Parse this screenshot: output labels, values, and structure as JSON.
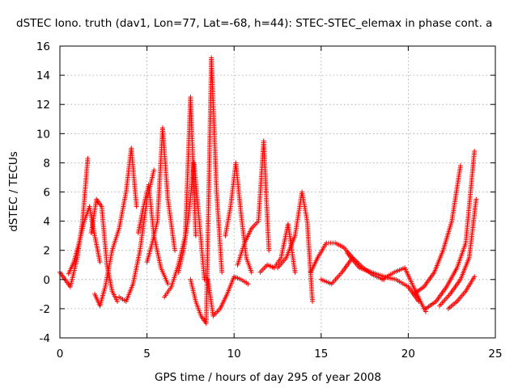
{
  "chart_data": {
    "type": "scatter",
    "title": "dSTEC Iono. truth (dav1, Lon=77, Lat=-68, h=44): STEC-STEC_elemax in phase cont. a",
    "xlabel": "GPS time / hours of day 295 of year 2008",
    "ylabel": "dSTEC  / TECUs",
    "xlim": [
      0,
      25
    ],
    "ylim": [
      -4,
      16
    ],
    "x_ticks": [
      0,
      5,
      10,
      15,
      20,
      25
    ],
    "y_ticks": [
      -4,
      -2,
      0,
      2,
      4,
      6,
      8,
      10,
      12,
      14,
      16
    ],
    "grid": true,
    "marker": "+",
    "color": "#ff0000",
    "series": [
      {
        "x": [
          0.0,
          0.3,
          0.6,
          1.0,
          1.3,
          1.6
        ],
        "y": [
          0.5,
          0.0,
          -0.5,
          1.5,
          4.0,
          8.3
        ]
      },
      {
        "x": [
          0.5,
          0.8,
          1.1,
          1.4,
          1.7,
          2.0,
          2.3
        ],
        "y": [
          0.4,
          1.2,
          2.5,
          4.0,
          5.0,
          3.0,
          1.2
        ]
      },
      {
        "x": [
          1.8,
          2.1,
          2.4,
          2.7,
          3.0,
          3.3
        ],
        "y": [
          3.2,
          5.5,
          5.0,
          1.0,
          -0.8,
          -1.5
        ]
      },
      {
        "x": [
          2.0,
          2.3,
          2.6,
          3.0,
          3.4,
          3.8,
          4.1,
          4.4
        ],
        "y": [
          -1.0,
          -1.8,
          -0.5,
          2.0,
          3.5,
          6.0,
          9.0,
          5.0
        ]
      },
      {
        "x": [
          3.4,
          3.8,
          4.2,
          4.6,
          5.0,
          5.4
        ],
        "y": [
          -1.2,
          -1.5,
          -0.3,
          2.0,
          5.5,
          7.5
        ]
      },
      {
        "x": [
          4.5,
          4.8,
          5.1,
          5.4,
          5.8,
          6.2
        ],
        "y": [
          3.2,
          5.0,
          6.5,
          3.0,
          0.8,
          -0.3
        ]
      },
      {
        "x": [
          5.0,
          5.3,
          5.6,
          5.9,
          6.2,
          6.6
        ],
        "y": [
          1.2,
          2.5,
          4.0,
          10.4,
          5.5,
          2.0
        ]
      },
      {
        "x": [
          6.0,
          6.4,
          6.8,
          7.2,
          7.5,
          7.8
        ],
        "y": [
          -1.2,
          -0.5,
          1.0,
          3.0,
          12.5,
          3.0
        ]
      },
      {
        "x": [
          6.8,
          7.1,
          7.4,
          7.7,
          8.0,
          8.3
        ],
        "y": [
          0.5,
          2.0,
          4.5,
          8.0,
          4.0,
          0.0
        ]
      },
      {
        "x": [
          7.5,
          7.8,
          8.1,
          8.4,
          8.7,
          9.0,
          9.3
        ],
        "y": [
          0.0,
          -1.5,
          -2.5,
          -3.0,
          15.2,
          6.0,
          0.5
        ]
      },
      {
        "x": [
          8.5,
          8.8,
          9.2,
          9.6,
          10.0,
          10.4,
          10.8
        ],
        "y": [
          0.0,
          -2.5,
          -2.0,
          -1.0,
          0.2,
          0.0,
          -0.3
        ]
      },
      {
        "x": [
          9.5,
          9.8,
          10.1,
          10.4,
          10.7,
          11.0
        ],
        "y": [
          3.0,
          5.0,
          8.0,
          4.5,
          1.5,
          0.5
        ]
      },
      {
        "x": [
          10.2,
          10.6,
          11.0,
          11.4,
          11.7,
          12.0
        ],
        "y": [
          1.0,
          2.5,
          3.5,
          4.0,
          9.5,
          2.0
        ]
      },
      {
        "x": [
          11.5,
          11.9,
          12.3,
          12.7,
          13.1,
          13.5
        ],
        "y": [
          0.5,
          1.0,
          0.8,
          1.5,
          3.8,
          0.5
        ]
      },
      {
        "x": [
          12.5,
          13.0,
          13.5,
          13.9,
          14.2,
          14.5
        ],
        "y": [
          0.8,
          1.5,
          3.0,
          6.0,
          4.0,
          -1.5
        ]
      },
      {
        "x": [
          14.4,
          14.8,
          15.3,
          15.8,
          16.3,
          16.8
        ],
        "y": [
          0.5,
          1.5,
          2.5,
          2.5,
          2.2,
          1.5
        ]
      },
      {
        "x": [
          15.0,
          15.6,
          16.2,
          16.8,
          17.4,
          18.0,
          18.6
        ],
        "y": [
          0.0,
          -0.3,
          0.5,
          1.5,
          0.8,
          0.3,
          0.0
        ]
      },
      {
        "x": [
          16.5,
          17.2,
          17.9,
          18.6,
          19.3,
          20.0,
          20.6
        ],
        "y": [
          1.8,
          0.8,
          0.5,
          0.2,
          0.0,
          -0.5,
          -1.5
        ]
      },
      {
        "x": [
          18.5,
          19.2,
          19.8,
          20.3,
          20.7,
          21.0
        ],
        "y": [
          0.0,
          0.5,
          0.8,
          -0.5,
          -1.5,
          -2.2
        ]
      },
      {
        "x": [
          20.3,
          20.9,
          21.5,
          22.0,
          22.5,
          23.0
        ],
        "y": [
          -1.0,
          -0.5,
          0.5,
          2.0,
          4.0,
          7.8
        ]
      },
      {
        "x": [
          21.0,
          21.6,
          22.2,
          22.8,
          23.3,
          23.8
        ],
        "y": [
          -2.0,
          -1.5,
          -0.5,
          0.8,
          2.5,
          8.8
        ]
      },
      {
        "x": [
          21.8,
          22.4,
          23.0,
          23.5,
          23.9
        ],
        "y": [
          -1.8,
          -1.0,
          0.0,
          1.5,
          5.5
        ]
      },
      {
        "x": [
          22.3,
          22.8,
          23.3,
          23.8
        ],
        "y": [
          -2.0,
          -1.5,
          -0.8,
          0.2
        ]
      }
    ]
  }
}
